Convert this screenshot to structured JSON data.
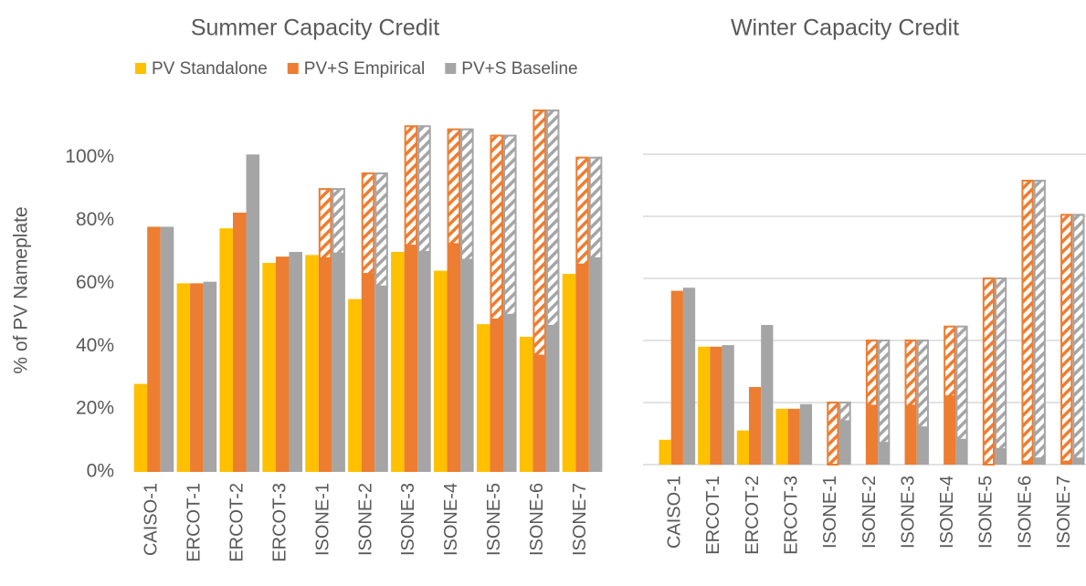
{
  "chart_data": [
    {
      "type": "bar",
      "title": "Summer Capacity Credit",
      "y_label": "% of PV Nameplate",
      "categories": [
        "CAISO-1",
        "ERCOT-1",
        "ERCOT-2",
        "ERCOT-3",
        "ISONE-1",
        "ISONE-2",
        "ISONE-3",
        "ISONE-4",
        "ISONE-5",
        "ISONE-6",
        "ISONE-7"
      ],
      "series": [
        {
          "name": "PV Standalone",
          "color": "#ffc000",
          "values": [
            28,
            60,
            77.5,
            66.5,
            69,
            55,
            70,
            64,
            47,
            43,
            63
          ]
        },
        {
          "name": "PV+S Empirical",
          "color": "#ed7d31",
          "values": [
            78,
            60,
            82.5,
            68.5,
            68,
            63,
            72,
            72.5,
            48.5,
            37,
            66
          ],
          "upper": [
            null,
            null,
            null,
            null,
            90,
            95,
            110,
            109,
            107,
            115,
            100
          ]
        },
        {
          "name": "PV+S Baseline",
          "color": "#a5a5a5",
          "values": [
            78,
            60.5,
            101,
            70,
            69.5,
            59,
            70,
            67.5,
            50,
            46.5,
            68
          ],
          "upper": [
            null,
            null,
            null,
            null,
            90,
            95,
            110,
            109,
            107,
            115,
            100
          ]
        }
      ],
      "ylim": [
        0,
        115
      ],
      "yticks": [
        {
          "value": 0,
          "label": "0%"
        },
        {
          "value": 20,
          "label": "20%"
        },
        {
          "value": 40,
          "label": "40%"
        },
        {
          "value": 60,
          "label": "60%"
        },
        {
          "value": 80,
          "label": "80%"
        },
        {
          "value": 100,
          "label": "100%"
        }
      ],
      "grid": false,
      "legend": true
    },
    {
      "type": "bar",
      "title": "Winter Capacity Credit",
      "categories": [
        "CAISO-1",
        "ERCOT-1",
        "ERCOT-2",
        "ERCOT-3",
        "ISONE-1",
        "ISONE-2",
        "ISONE-3",
        "ISONE-4",
        "ISONE-5",
        "ISONE-6",
        "ISONE-7"
      ],
      "series": [
        {
          "color": "#ffc000",
          "values": [
            8,
            38,
            11,
            18,
            0,
            0,
            0,
            0,
            0,
            0,
            0
          ]
        },
        {
          "color": "#ed7d31",
          "values": [
            56,
            38,
            25,
            18,
            0,
            19,
            19,
            22,
            0,
            1,
            1
          ],
          "upper": [
            null,
            null,
            null,
            null,
            20,
            40,
            40,
            44.5,
            60,
            91.5,
            80.5
          ]
        },
        {
          "color": "#a5a5a5",
          "values": [
            57,
            38.5,
            45,
            19.5,
            14,
            7,
            12,
            8,
            5,
            2,
            2
          ],
          "upper": [
            null,
            null,
            null,
            null,
            20,
            40,
            40,
            44.5,
            60,
            91.5,
            80.5
          ]
        }
      ],
      "ylim": [
        0,
        115
      ],
      "yticks": [
        0,
        20,
        40,
        60,
        80,
        100
      ],
      "grid": true,
      "show_tick_labels": false,
      "legend": false
    }
  ]
}
